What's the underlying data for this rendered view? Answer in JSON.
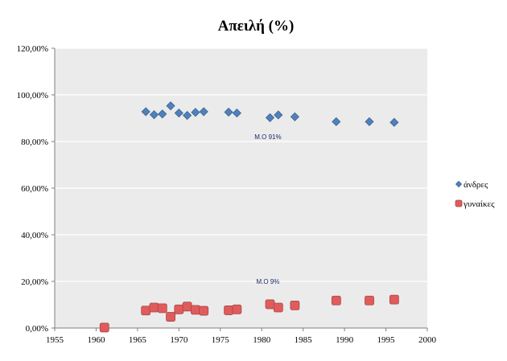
{
  "chart_data": {
    "type": "scatter",
    "title": "Απειλή (%)",
    "xlabel": "",
    "ylabel": "",
    "xlim": [
      1955,
      2000
    ],
    "ylim": [
      0,
      1.2
    ],
    "x_ticks": [
      "1955",
      "1960",
      "1965",
      "1970",
      "1975",
      "1980",
      "1985",
      "1990",
      "1995",
      "2000"
    ],
    "y_ticks": [
      "0,00%",
      "20,00%",
      "40,00%",
      "60,00%",
      "80,00%",
      "100,00%",
      "120,00%"
    ],
    "grid": "horizontal",
    "legend_position": "right",
    "series": [
      {
        "name": "άνδρες",
        "marker": "diamond",
        "color": "#4f81bd",
        "points": [
          {
            "x": 1966,
            "y": 0.928
          },
          {
            "x": 1967,
            "y": 0.915
          },
          {
            "x": 1968,
            "y": 0.918
          },
          {
            "x": 1969,
            "y": 0.953
          },
          {
            "x": 1970,
            "y": 0.922
          },
          {
            "x": 1971,
            "y": 0.912
          },
          {
            "x": 1972,
            "y": 0.925
          },
          {
            "x": 1973,
            "y": 0.928
          },
          {
            "x": 1976,
            "y": 0.926
          },
          {
            "x": 1977,
            "y": 0.922
          },
          {
            "x": 1981,
            "y": 0.902
          },
          {
            "x": 1982,
            "y": 0.914
          },
          {
            "x": 1984,
            "y": 0.906
          },
          {
            "x": 1989,
            "y": 0.885
          },
          {
            "x": 1993,
            "y": 0.885
          },
          {
            "x": 1996,
            "y": 0.882
          }
        ]
      },
      {
        "name": "γυναίκες",
        "marker": "square",
        "color": "#e05c5c",
        "points": [
          {
            "x": 1961,
            "y": 0.002
          },
          {
            "x": 1966,
            "y": 0.075
          },
          {
            "x": 1967,
            "y": 0.088
          },
          {
            "x": 1968,
            "y": 0.085
          },
          {
            "x": 1969,
            "y": 0.048
          },
          {
            "x": 1970,
            "y": 0.08
          },
          {
            "x": 1971,
            "y": 0.092
          },
          {
            "x": 1972,
            "y": 0.078
          },
          {
            "x": 1973,
            "y": 0.074
          },
          {
            "x": 1976,
            "y": 0.076
          },
          {
            "x": 1977,
            "y": 0.08
          },
          {
            "x": 1981,
            "y": 0.102
          },
          {
            "x": 1982,
            "y": 0.088
          },
          {
            "x": 1984,
            "y": 0.097
          },
          {
            "x": 1989,
            "y": 0.118
          },
          {
            "x": 1993,
            "y": 0.118
          },
          {
            "x": 1996,
            "y": 0.122
          }
        ]
      }
    ],
    "annotations": [
      {
        "text": "Μ.Ο 91%",
        "x": 1979,
        "y": 0.81
      },
      {
        "text": "Μ.Ο 9%",
        "x": 1979,
        "y": 0.19
      }
    ]
  }
}
